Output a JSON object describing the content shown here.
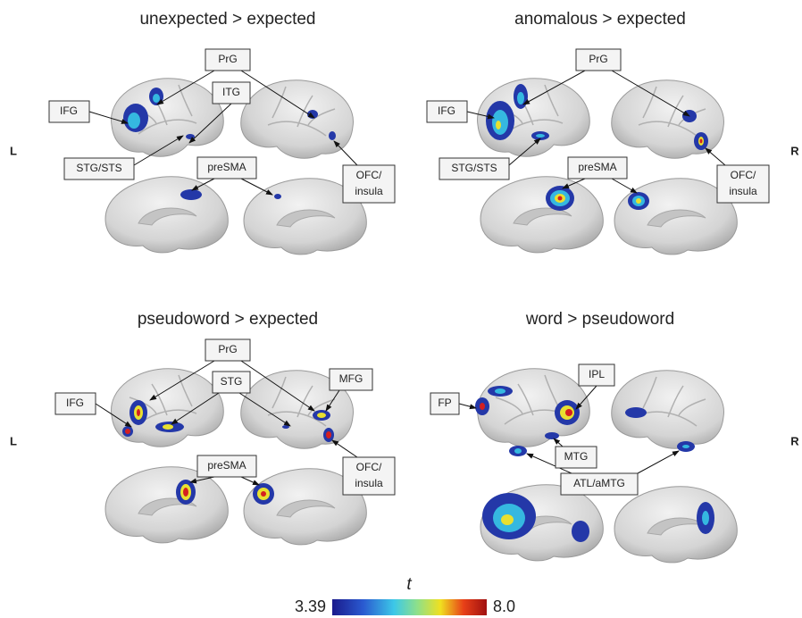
{
  "side_labels": [
    "L",
    "R",
    "L",
    "R"
  ],
  "panels": [
    {
      "title": "unexpected > expected",
      "labels": [
        "PrG",
        "IFG",
        "ITG",
        "STG/STS",
        "preSMA",
        [
          "OFC/",
          "insula"
        ]
      ]
    },
    {
      "title": "anomalous > expected",
      "labels": [
        "PrG",
        "IFG",
        "STG/STS",
        "preSMA",
        [
          "OFC/",
          "insula"
        ]
      ]
    },
    {
      "title": "pseudoword > expected",
      "labels": [
        "PrG",
        "IFG",
        "STG",
        "MFG",
        "preSMA",
        [
          "OFC/",
          "insula"
        ]
      ]
    },
    {
      "title": "word > pseudoword",
      "labels": [
        "FP",
        "IPL",
        "MTG",
        "ATL/aMTG"
      ]
    }
  ],
  "colorbar": {
    "label": "t",
    "min": "3.39",
    "max": "8.0"
  }
}
